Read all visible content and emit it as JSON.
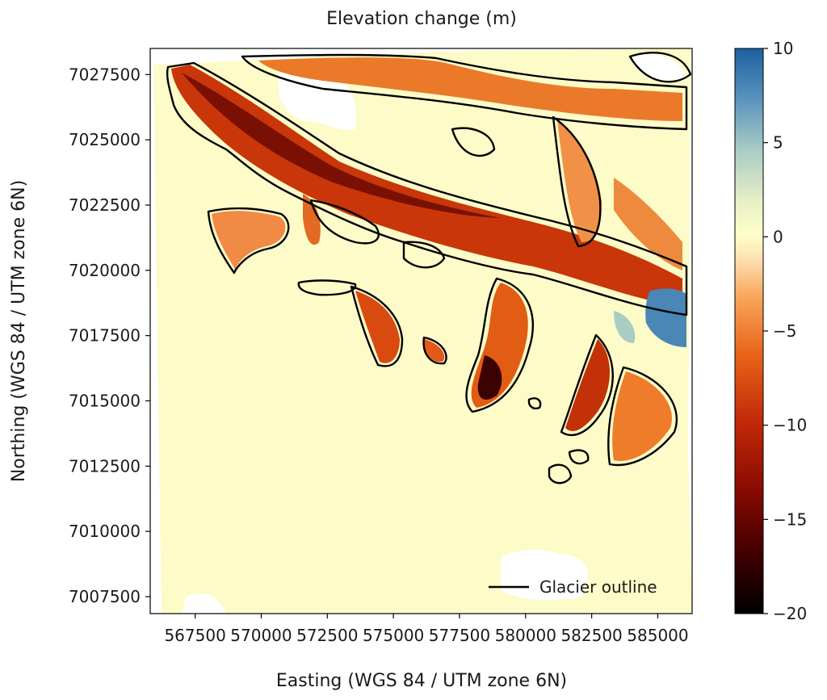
{
  "chart_data": {
    "type": "heatmap",
    "title": "Elevation change (m)",
    "xlabel": "Easting (WGS 84 / UTM zone 6N)",
    "ylabel": "Northing (WGS 84 / UTM zone 6N)",
    "xlim": [
      565800,
      586300
    ],
    "ylim": [
      7006850,
      7028500
    ],
    "x_ticks": [
      567500,
      570000,
      572500,
      575000,
      577500,
      580000,
      582500,
      585000
    ],
    "y_ticks": [
      7007500,
      7010000,
      7012500,
      7015000,
      7017500,
      7020000,
      7022500,
      7025000,
      7027500
    ],
    "colorbar": {
      "vmin": -20,
      "vmax": 10,
      "ticks": [
        -20,
        -15,
        -10,
        -5,
        0,
        5,
        10
      ],
      "tick_labels": [
        "−20",
        "−15",
        "−10",
        "−5",
        "0",
        "5",
        "10"
      ],
      "colormap": "RdYlBu",
      "colors": [
        "#000000",
        "#6b0000",
        "#b3200a",
        "#e66a10",
        "#fcb060",
        "#fcefd0",
        "#ffffc8",
        "#dde9c4",
        "#9cc3c8",
        "#4a86b6",
        "#1d5fa0"
      ]
    },
    "legend": {
      "entries": [
        {
          "label": "Glacier outline",
          "color": "#000000"
        }
      ],
      "placement": "lower-right"
    },
    "background_color": "#fdfbc8",
    "series": [
      {
        "name": "Glacier outline",
        "description": "closed polygon boundaries of glaciers"
      }
    ]
  }
}
